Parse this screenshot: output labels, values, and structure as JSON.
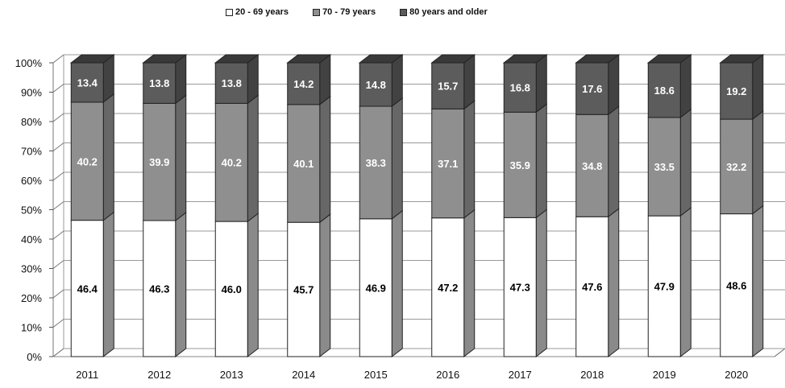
{
  "chart_data": {
    "type": "bar",
    "stacked": true,
    "percent_stacked": true,
    "three_d": true,
    "categories": [
      "2011",
      "2012",
      "2013",
      "2014",
      "2015",
      "2016",
      "2017",
      "2018",
      "2019",
      "2020"
    ],
    "series": [
      {
        "name": "20 - 69 years",
        "color": "#ffffff",
        "label_color": "#000000",
        "values": [
          46.4,
          46.3,
          46.0,
          45.7,
          46.9,
          47.2,
          47.3,
          47.6,
          47.9,
          48.6
        ],
        "labels": [
          "46.4",
          "46.3",
          "46.0",
          "45.7",
          "46.9",
          "47.2",
          "47.3",
          "47.6",
          "47.9",
          "48.6"
        ]
      },
      {
        "name": "70 - 79 years",
        "color": "#8f8f8f",
        "label_color": "#ffffff",
        "values": [
          40.2,
          39.9,
          40.2,
          40.1,
          38.3,
          37.1,
          35.9,
          34.8,
          33.5,
          32.2
        ],
        "labels": [
          "40.2",
          "39.9",
          "40.2",
          "40.1",
          "38.3",
          "37.1",
          "35.9",
          "34.8",
          "33.5",
          "32.2"
        ]
      },
      {
        "name": "80 years and older",
        "color": "#5c5c5c",
        "label_color": "#ffffff",
        "values": [
          13.4,
          13.8,
          13.8,
          14.2,
          14.8,
          15.7,
          16.8,
          17.6,
          18.6,
          19.2
        ],
        "labels": [
          "13.4",
          "13.8",
          "13.8",
          "14.2",
          "14.8",
          "15.7",
          "16.8",
          "17.6",
          "18.6",
          "19.2"
        ]
      }
    ],
    "y_ticks": [
      "0%",
      "10%",
      "20%",
      "30%",
      "40%",
      "50%",
      "60%",
      "70%",
      "80%",
      "90%",
      "100%"
    ],
    "ylim": [
      0,
      100
    ],
    "grid": true,
    "legend_position": "top"
  }
}
